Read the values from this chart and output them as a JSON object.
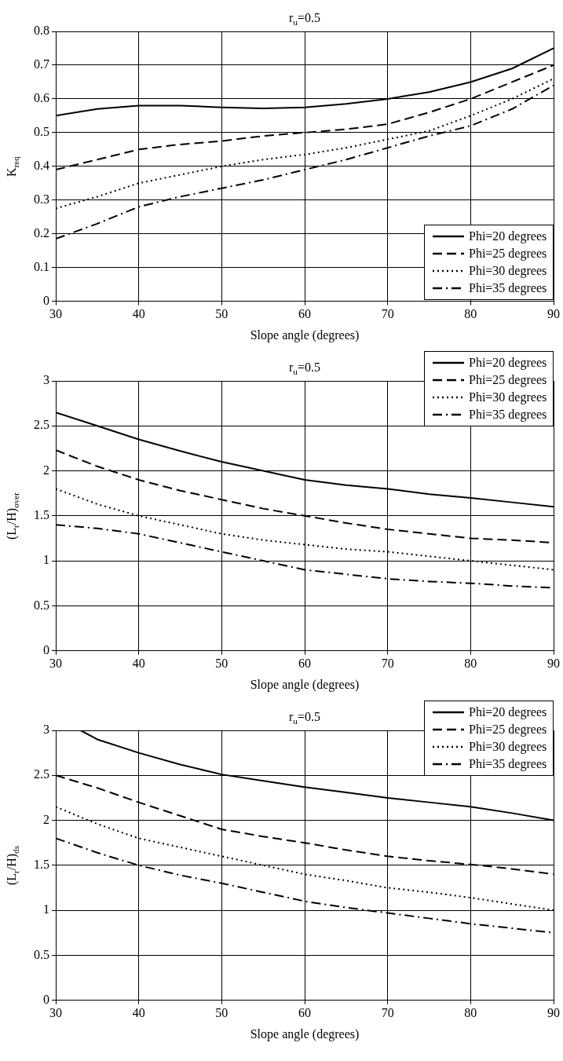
{
  "chart_data": [
    {
      "type": "line",
      "title": "r$_{u}$=0.5",
      "xlabel": "Slope angle (degrees)",
      "ylabel": "K$_{req}$",
      "x": [
        30,
        35,
        40,
        45,
        50,
        55,
        60,
        65,
        70,
        75,
        80,
        85,
        90
      ],
      "xlim": [
        30,
        90
      ],
      "xticks": [
        30,
        40,
        50,
        60,
        70,
        80,
        90
      ],
      "ylim": [
        0,
        0.8
      ],
      "yticks": [
        {
          "value": 0,
          "label": "0"
        },
        {
          "value": 0.1,
          "label": "0.1"
        },
        {
          "value": 0.2,
          "label": "0.2"
        },
        {
          "value": 0.3,
          "label": "0.3"
        },
        {
          "value": 0.4,
          "label": "0.4"
        },
        {
          "value": 0.5,
          "label": "0.5"
        },
        {
          "value": 0.6,
          "label": "0.6"
        },
        {
          "value": 0.7,
          "label": "0.7"
        },
        {
          "value": 0.8,
          "label": "0.8"
        }
      ],
      "grid": true,
      "legend": "bottom right",
      "marker": "none",
      "series": [
        {
          "name": "Phi=20 degrees",
          "color": "#000000",
          "line_style": "solid",
          "values": [
            0.55,
            0.57,
            0.58,
            0.58,
            0.575,
            0.572,
            0.575,
            0.585,
            0.6,
            0.62,
            0.65,
            0.69,
            0.75
          ]
        },
        {
          "name": "Phi=25 degrees",
          "color": "#000000",
          "line_style": "dashed",
          "values": [
            0.39,
            0.42,
            0.45,
            0.465,
            0.475,
            0.49,
            0.5,
            0.51,
            0.525,
            0.56,
            0.6,
            0.65,
            0.7
          ]
        },
        {
          "name": "Phi=30 degrees",
          "color": "#000000",
          "line_style": "dotted",
          "values": [
            0.275,
            0.31,
            0.35,
            0.375,
            0.4,
            0.42,
            0.435,
            0.455,
            0.48,
            0.505,
            0.55,
            0.6,
            0.66
          ]
        },
        {
          "name": "Phi=35 degrees",
          "color": "#000000",
          "line_style": "dashdot",
          "values": [
            0.185,
            0.23,
            0.28,
            0.31,
            0.335,
            0.36,
            0.39,
            0.42,
            0.455,
            0.49,
            0.52,
            0.57,
            0.64
          ]
        }
      ]
    },
    {
      "type": "line",
      "title": "r$_{u}$=0.5",
      "xlabel": "Slope angle (degrees)",
      "ylabel": "(L$_{r}$/H)$_{over}$",
      "x": [
        30,
        35,
        40,
        45,
        50,
        55,
        60,
        65,
        70,
        75,
        80,
        85,
        90
      ],
      "xlim": [
        30,
        90
      ],
      "xticks": [
        30,
        40,
        50,
        60,
        70,
        80,
        90
      ],
      "ylim": [
        0,
        3
      ],
      "yticks": [
        0,
        0.5,
        1,
        1.5,
        2,
        2.5,
        3
      ],
      "grid": true,
      "legend": "top right",
      "marker": "none",
      "series": [
        {
          "name": "Phi=20 degrees",
          "color": "#000000",
          "line_style": "solid",
          "values": [
            2.65,
            2.5,
            2.35,
            2.22,
            2.1,
            2.0,
            1.9,
            1.84,
            1.8,
            1.74,
            1.7,
            1.65,
            1.6
          ]
        },
        {
          "name": "Phi=25 degrees",
          "color": "#000000",
          "line_style": "dashed",
          "values": [
            2.23,
            2.05,
            1.9,
            1.78,
            1.68,
            1.58,
            1.5,
            1.42,
            1.35,
            1.3,
            1.25,
            1.23,
            1.2
          ]
        },
        {
          "name": "Phi=30 degrees",
          "color": "#000000",
          "line_style": "dotted",
          "values": [
            1.8,
            1.63,
            1.5,
            1.4,
            1.3,
            1.23,
            1.18,
            1.13,
            1.1,
            1.05,
            1.0,
            0.95,
            0.9
          ]
        },
        {
          "name": "Phi=35 degrees",
          "color": "#000000",
          "line_style": "dashdot",
          "values": [
            1.4,
            1.36,
            1.3,
            1.2,
            1.1,
            1.0,
            0.9,
            0.85,
            0.8,
            0.77,
            0.75,
            0.72,
            0.7
          ]
        }
      ]
    },
    {
      "type": "line",
      "title": "r$_{u}$=0.5",
      "xlabel": "Slope angle (degrees)",
      "ylabel": "(L$_{r}$/H)$_{ds}$",
      "x": [
        30,
        35,
        40,
        45,
        50,
        55,
        60,
        65,
        70,
        75,
        80,
        85,
        90
      ],
      "xlim": [
        30,
        90
      ],
      "xticks": [
        30,
        40,
        50,
        60,
        70,
        80,
        90
      ],
      "ylim": [
        0,
        3
      ],
      "yticks": [
        0,
        0.5,
        1,
        1.5,
        2,
        2.5,
        3
      ],
      "grid": true,
      "legend": "top right",
      "marker": "none",
      "series": [
        {
          "name": "Phi=20 degrees",
          "color": "#000000",
          "line_style": "solid",
          "x": [
            33,
            35,
            40,
            45,
            50,
            55,
            60,
            65,
            70,
            75,
            80,
            85,
            90
          ],
          "values": [
            3.0,
            2.9,
            2.75,
            2.62,
            2.51,
            2.44,
            2.37,
            2.31,
            2.25,
            2.2,
            2.15,
            2.08,
            2.0
          ]
        },
        {
          "name": "Phi=25 degrees",
          "color": "#000000",
          "line_style": "dashed",
          "values": [
            2.5,
            2.36,
            2.2,
            2.05,
            1.9,
            1.82,
            1.75,
            1.67,
            1.6,
            1.55,
            1.51,
            1.46,
            1.4
          ]
        },
        {
          "name": "Phi=30 degrees",
          "color": "#000000",
          "line_style": "dotted",
          "values": [
            2.15,
            1.96,
            1.8,
            1.7,
            1.6,
            1.5,
            1.4,
            1.33,
            1.25,
            1.2,
            1.14,
            1.07,
            1.0
          ]
        },
        {
          "name": "Phi=35 degrees",
          "color": "#000000",
          "line_style": "dashdot",
          "values": [
            1.8,
            1.64,
            1.5,
            1.39,
            1.3,
            1.2,
            1.1,
            1.03,
            0.97,
            0.91,
            0.85,
            0.8,
            0.75
          ]
        }
      ]
    }
  ]
}
